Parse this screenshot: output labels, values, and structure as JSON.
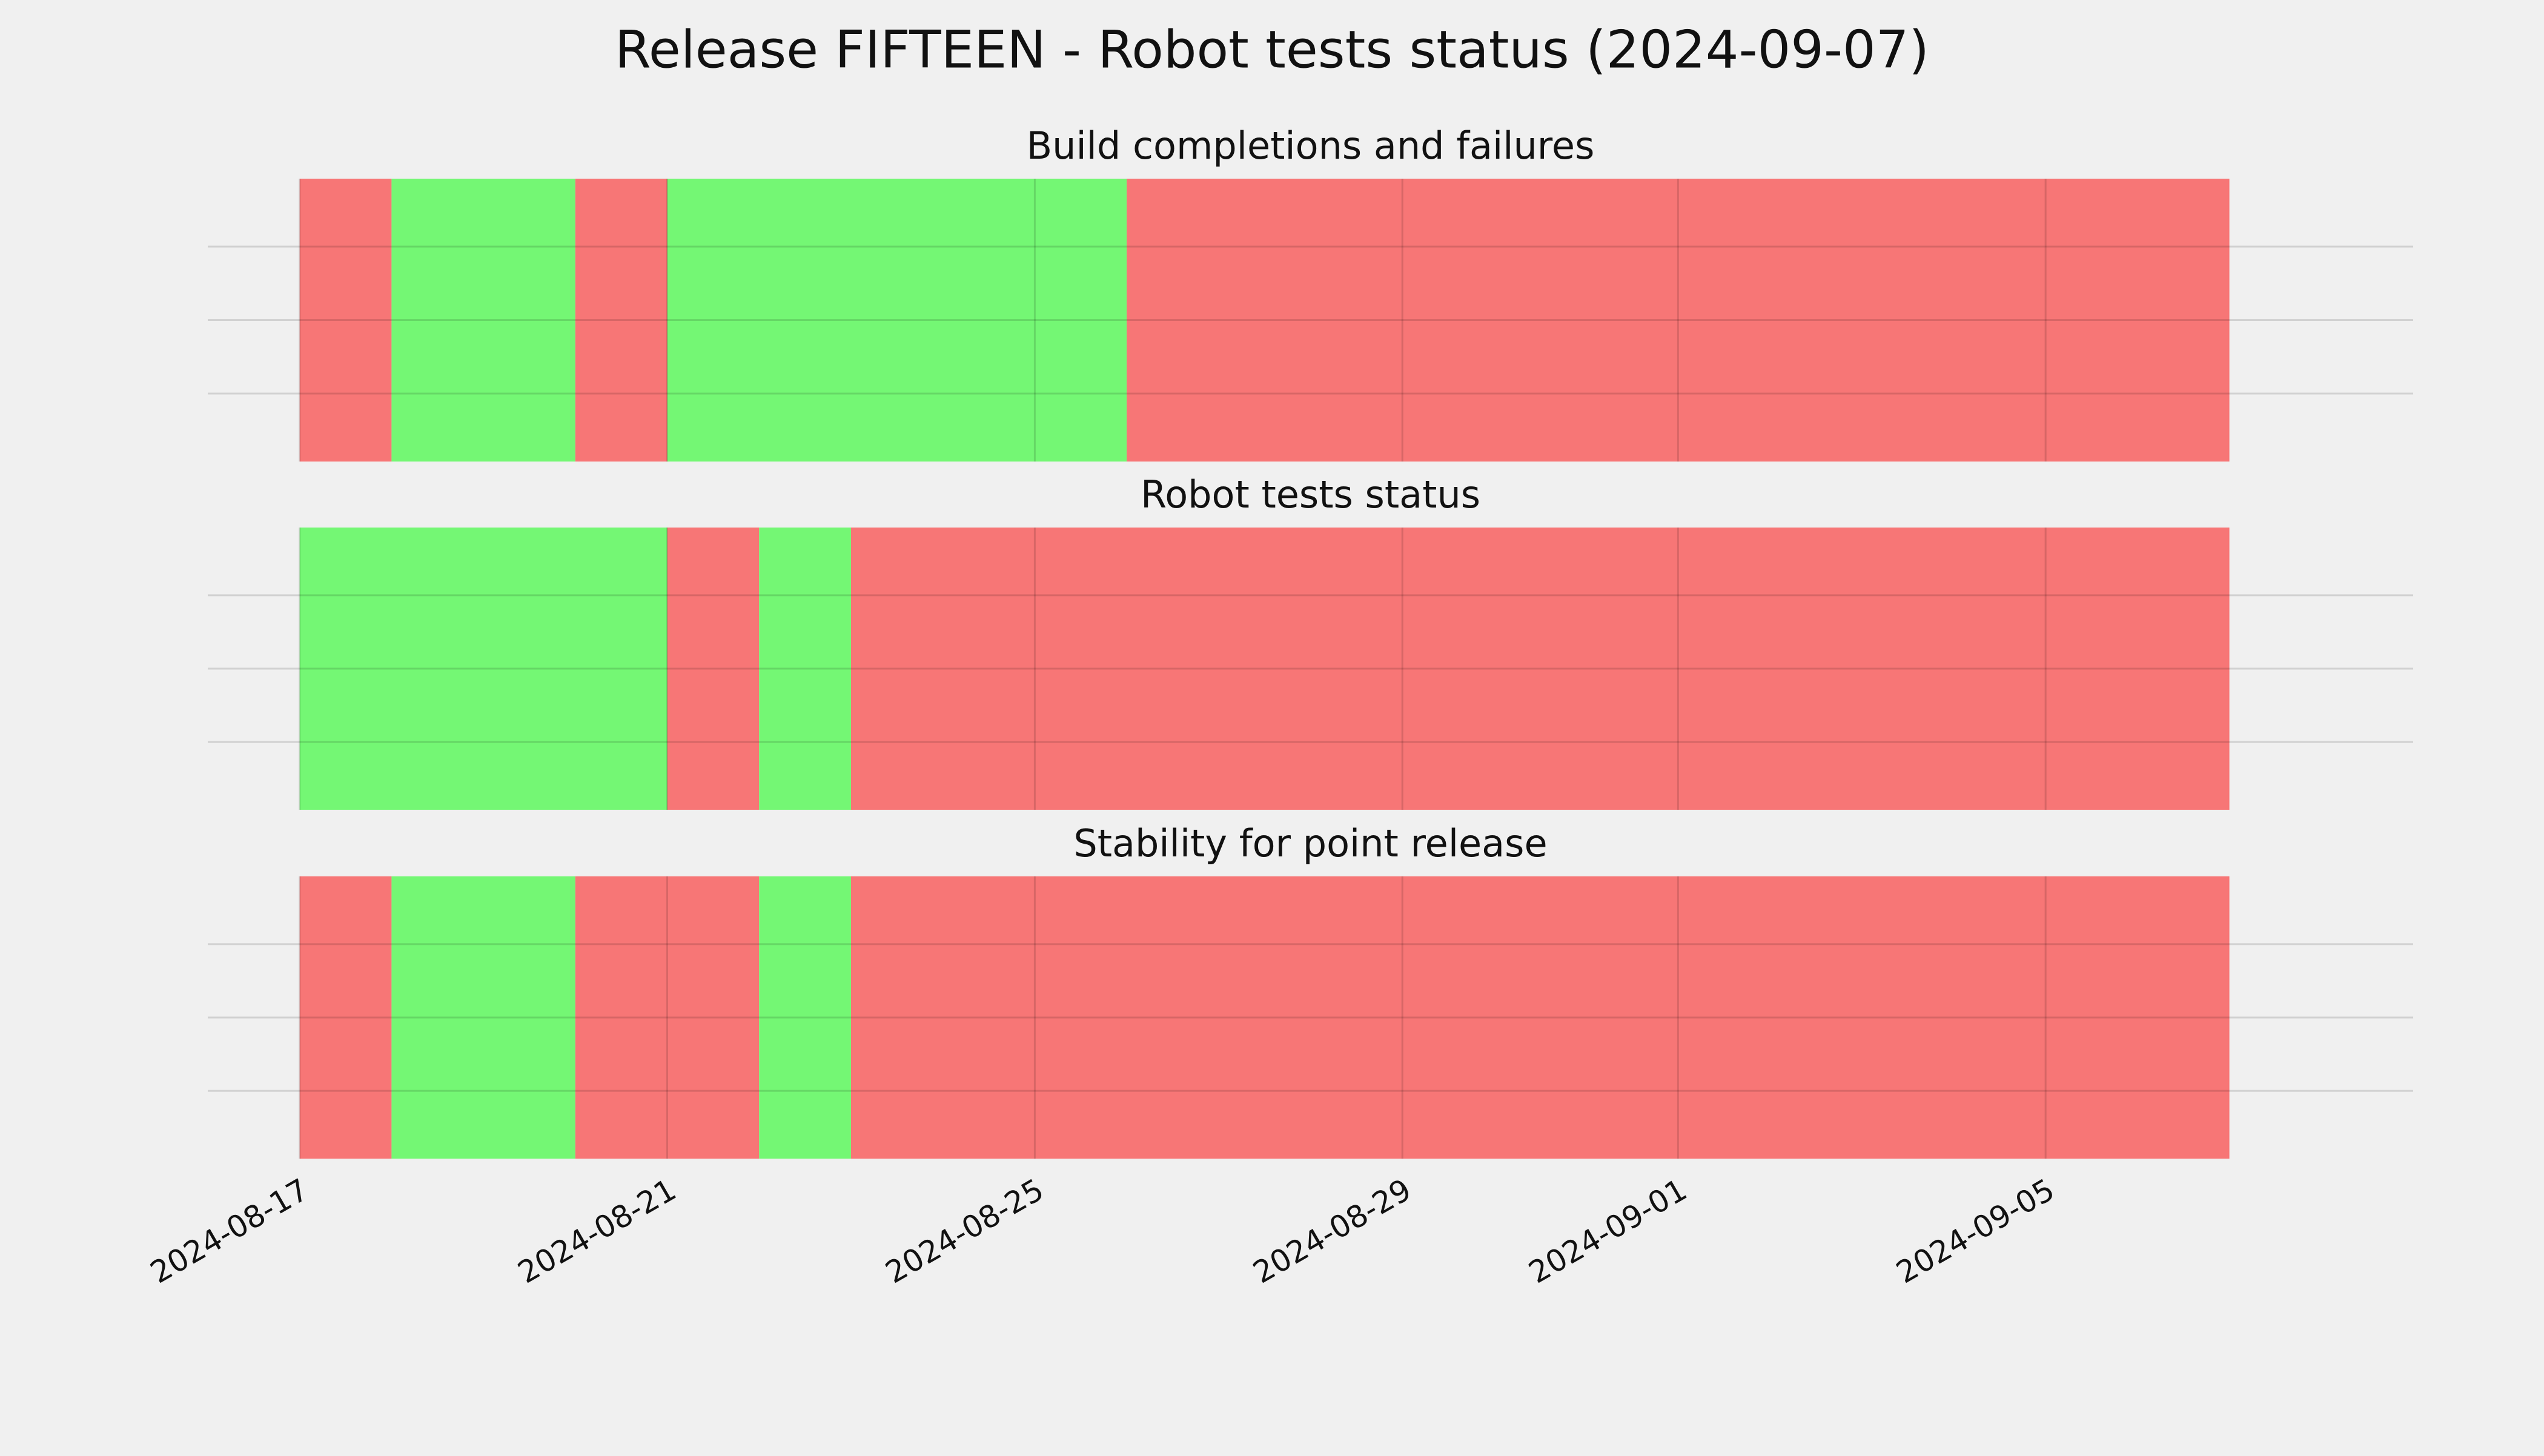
{
  "title": "Release FIFTEEN - Robot tests status (2024-09-07)",
  "chart_data": [
    {
      "type": "timeline",
      "title": "Build completions and failures",
      "segments": [
        {
          "start": "2024-08-17",
          "end": "2024-08-18",
          "color": "#f77676"
        },
        {
          "start": "2024-08-18",
          "end": "2024-08-20",
          "color": "#74f774"
        },
        {
          "start": "2024-08-20",
          "end": "2024-08-21",
          "color": "#f77676"
        },
        {
          "start": "2024-08-21",
          "end": "2024-08-26",
          "color": "#74f774"
        },
        {
          "start": "2024-08-26",
          "end": "2024-09-07",
          "color": "#f77676"
        }
      ],
      "xlim": [
        "2024-08-16",
        "2024-09-09"
      ],
      "xticks": [
        "2024-08-17",
        "2024-08-21",
        "2024-08-25",
        "2024-08-29",
        "2024-09-01",
        "2024-09-05"
      ],
      "grid": true
    },
    {
      "type": "timeline",
      "title": "Robot tests status",
      "segments": [
        {
          "start": "2024-08-17",
          "end": "2024-08-21",
          "color": "#74f774"
        },
        {
          "start": "2024-08-21",
          "end": "2024-08-22",
          "color": "#f77676"
        },
        {
          "start": "2024-08-22",
          "end": "2024-08-23",
          "color": "#74f774"
        },
        {
          "start": "2024-08-23",
          "end": "2024-09-07",
          "color": "#f77676"
        }
      ],
      "xlim": [
        "2024-08-16",
        "2024-09-09"
      ],
      "xticks": [
        "2024-08-17",
        "2024-08-21",
        "2024-08-25",
        "2024-08-29",
        "2024-09-01",
        "2024-09-05"
      ],
      "grid": true
    },
    {
      "type": "timeline",
      "title": "Stability for point release",
      "segments": [
        {
          "start": "2024-08-17",
          "end": "2024-08-18",
          "color": "#f77676"
        },
        {
          "start": "2024-08-18",
          "end": "2024-08-20",
          "color": "#74f774"
        },
        {
          "start": "2024-08-20",
          "end": "2024-08-22",
          "color": "#f77676"
        },
        {
          "start": "2024-08-22",
          "end": "2024-08-23",
          "color": "#74f774"
        },
        {
          "start": "2024-08-23",
          "end": "2024-09-07",
          "color": "#f77676"
        }
      ],
      "xlim": [
        "2024-08-16",
        "2024-09-09"
      ],
      "xticks": [
        "2024-08-17",
        "2024-08-21",
        "2024-08-25",
        "2024-08-29",
        "2024-09-01",
        "2024-09-05"
      ],
      "grid": true
    }
  ]
}
